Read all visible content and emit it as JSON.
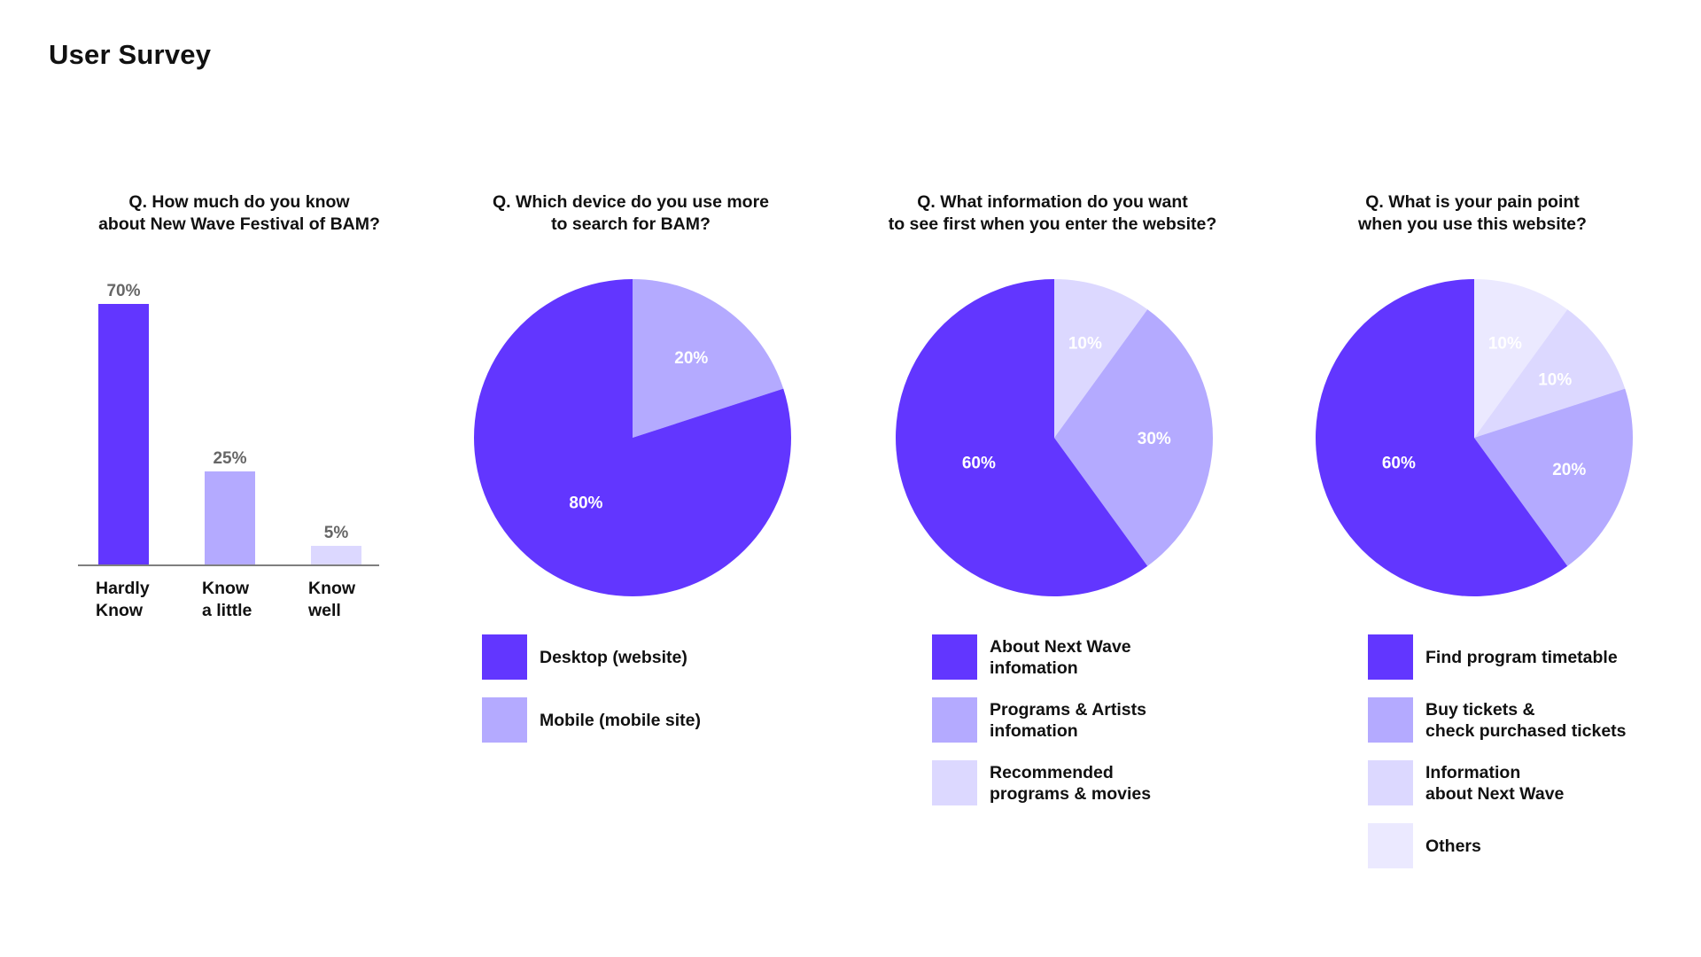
{
  "page": {
    "title": "User Survey"
  },
  "colors": {
    "c1": "#6236ff",
    "c2": "#b4aaff",
    "c3": "#dcd8ff",
    "c4": "#ebe9ff",
    "axis": "#555555",
    "bar_label": "#666666"
  },
  "chart_data": [
    {
      "type": "bar",
      "question": [
        "Q. How much do you know",
        "about New Wave Festival of BAM?"
      ],
      "categories": [
        [
          "Hardly",
          "Know"
        ],
        [
          "Know",
          "a little"
        ],
        [
          "Know",
          "well"
        ]
      ],
      "values": [
        70,
        25,
        5
      ],
      "value_labels": [
        "70%",
        "25%",
        "5%"
      ],
      "colors": [
        "#6236ff",
        "#b4aaff",
        "#dcd8ff"
      ],
      "ylim": [
        0,
        70
      ]
    },
    {
      "type": "pie",
      "question": [
        "Q. Which device do you use more",
        "to search for BAM?"
      ],
      "slices": [
        {
          "label": [
            "Mobile (mobile site)"
          ],
          "value": 20,
          "value_label": "20%",
          "color": "#b4aaff"
        },
        {
          "label": [
            "Desktop (website)"
          ],
          "value": 80,
          "value_label": "80%",
          "color": "#6236ff"
        }
      ],
      "legend_order": [
        1,
        0
      ]
    },
    {
      "type": "pie",
      "question": [
        "Q. What information do you want",
        "to see first when you enter the website?"
      ],
      "slices": [
        {
          "label": [
            "Recommended",
            "programs & movies"
          ],
          "value": 10,
          "value_label": "10%",
          "color": "#dcd8ff"
        },
        {
          "label": [
            "Programs & Artists",
            "infomation"
          ],
          "value": 30,
          "value_label": "30%",
          "color": "#b4aaff"
        },
        {
          "label": [
            "About Next Wave",
            "infomation"
          ],
          "value": 60,
          "value_label": "60%",
          "color": "#6236ff"
        }
      ],
      "legend_order": [
        2,
        1,
        0
      ]
    },
    {
      "type": "pie",
      "question": [
        "Q. What is your pain point",
        "when you use this website?"
      ],
      "slices": [
        {
          "label": [
            "Others"
          ],
          "value": 10,
          "value_label": "10%",
          "color": "#ebe9ff"
        },
        {
          "label": [
            "Information",
            "about Next Wave"
          ],
          "value": 10,
          "value_label": "10%",
          "color": "#dcd8ff"
        },
        {
          "label": [
            "Buy tickets &",
            "check purchased tickets"
          ],
          "value": 20,
          "value_label": "20%",
          "color": "#b4aaff"
        },
        {
          "label": [
            "Find program timetable"
          ],
          "value": 60,
          "value_label": "60%",
          "color": "#6236ff"
        }
      ],
      "legend_order": [
        3,
        2,
        1,
        0
      ]
    }
  ]
}
